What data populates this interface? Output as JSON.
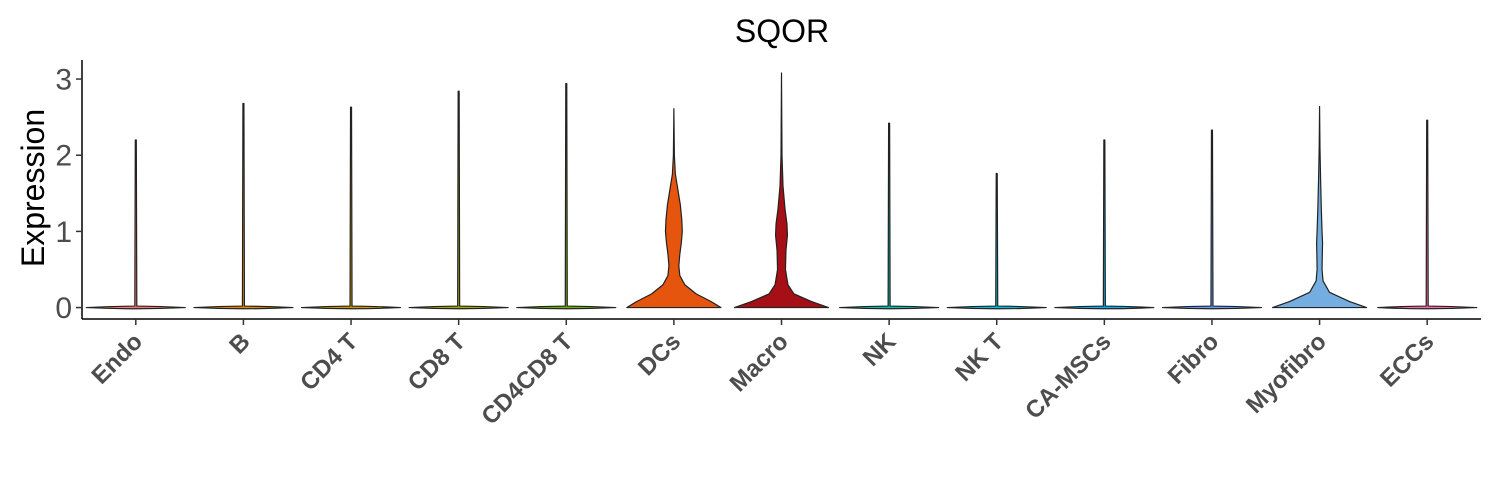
{
  "chart_data": {
    "type": "violin",
    "title": "SQOR",
    "xlabel": "",
    "ylabel": "Expression",
    "ylim": [
      -0.15,
      3.25
    ],
    "yticks": [
      0,
      1,
      2,
      3
    ],
    "grid": false,
    "legend": "none",
    "categories": [
      "Endo",
      "B",
      "CD4 T",
      "CD8 T",
      "CD4CD8 T",
      "DCs",
      "Macro",
      "NK",
      "NK T",
      "CA-MSCs",
      "Fibro",
      "Myofibro",
      "ECCs"
    ],
    "max_values": [
      2.2,
      2.68,
      2.63,
      2.84,
      2.94,
      2.61,
      3.08,
      2.42,
      1.76,
      2.2,
      2.33,
      2.64,
      2.46
    ],
    "colors": [
      "#F8766D",
      "#E58700",
      "#C99800",
      "#A3A500",
      "#6BB100",
      "#E6550D",
      "#A50F15",
      "#00C0AF",
      "#00BCD8",
      "#00B0F6",
      "#619CFF",
      "#74ADDF",
      "#FF67A4"
    ],
    "density_profiles": [
      {
        "category": "DCs",
        "points": [
          [
            0,
            0.95
          ],
          [
            0.08,
            0.75
          ],
          [
            0.18,
            0.45
          ],
          [
            0.3,
            0.22
          ],
          [
            0.42,
            0.12
          ],
          [
            0.55,
            0.1
          ],
          [
            0.7,
            0.12
          ],
          [
            0.85,
            0.15
          ],
          [
            1.0,
            0.17
          ],
          [
            1.15,
            0.16
          ],
          [
            1.35,
            0.13
          ],
          [
            1.55,
            0.08
          ],
          [
            1.75,
            0.03
          ],
          [
            2.0,
            0.01
          ],
          [
            2.61,
            0.0
          ]
        ]
      },
      {
        "category": "Macro",
        "points": [
          [
            0,
            0.95
          ],
          [
            0.08,
            0.6
          ],
          [
            0.18,
            0.25
          ],
          [
            0.3,
            0.13
          ],
          [
            0.5,
            0.08
          ],
          [
            0.75,
            0.09
          ],
          [
            0.95,
            0.12
          ],
          [
            1.1,
            0.11
          ],
          [
            1.3,
            0.07
          ],
          [
            1.6,
            0.03
          ],
          [
            2.0,
            0.01
          ],
          [
            3.08,
            0.0
          ]
        ]
      },
      {
        "category": "Myofibro",
        "points": [
          [
            0,
            0.95
          ],
          [
            0.08,
            0.6
          ],
          [
            0.2,
            0.2
          ],
          [
            0.35,
            0.07
          ],
          [
            0.5,
            0.05
          ],
          [
            0.7,
            0.055
          ],
          [
            0.85,
            0.06
          ],
          [
            1.0,
            0.05
          ],
          [
            1.3,
            0.035
          ],
          [
            1.7,
            0.02
          ],
          [
            2.1,
            0.008
          ],
          [
            2.64,
            0.0
          ]
        ]
      }
    ]
  }
}
